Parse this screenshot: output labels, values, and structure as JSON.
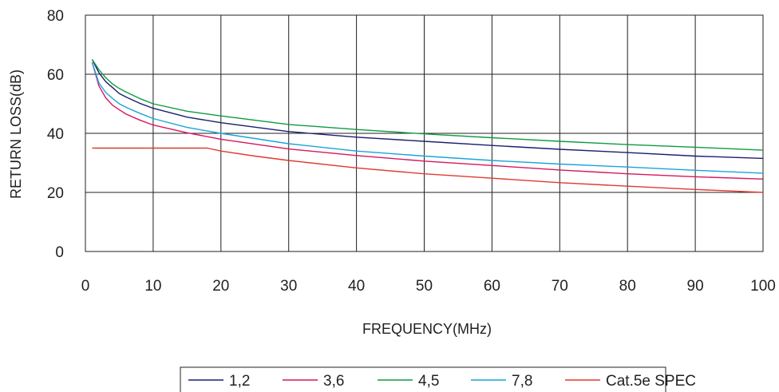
{
  "chart_data": {
    "type": "line",
    "xlabel": "FREQUENCY(MHz)",
    "ylabel": "RETURN LOSS(dB)",
    "xlim": [
      0,
      100
    ],
    "ylim": [
      0,
      80
    ],
    "xticks": [
      "0",
      "10",
      "20",
      "30",
      "40",
      "50",
      "60",
      "70",
      "80",
      "90",
      "100"
    ],
    "yticks": [
      "0",
      "20",
      "40",
      "60",
      "80"
    ],
    "grid": true,
    "legend_position": "bottom",
    "series": [
      {
        "name": "1,2",
        "color": "#1a1f6e",
        "x": [
          1,
          2,
          3,
          4,
          5,
          6,
          8,
          10,
          15,
          20,
          30,
          40,
          50,
          60,
          70,
          80,
          90,
          100
        ],
        "y": [
          65,
          60.5,
          57.5,
          55.5,
          53.5,
          52.3,
          50.2,
          48.5,
          45.5,
          43.6,
          40.6,
          38.7,
          37.3,
          35.9,
          34.6,
          33.5,
          32.3,
          31.5
        ]
      },
      {
        "name": "3,6",
        "color": "#d6175e",
        "x": [
          1,
          2,
          3,
          4,
          5,
          6,
          8,
          10,
          15,
          20,
          30,
          40,
          50,
          60,
          70,
          80,
          90,
          100
        ],
        "y": [
          64,
          56,
          52,
          49.5,
          48,
          46.5,
          44.5,
          42.8,
          40.2,
          38,
          34.7,
          32.5,
          30.6,
          29.1,
          27.6,
          26.3,
          25.3,
          24.5
        ]
      },
      {
        "name": "4,5",
        "color": "#119a43",
        "x": [
          1,
          2,
          3,
          4,
          5,
          6,
          8,
          10,
          15,
          20,
          30,
          40,
          50,
          60,
          70,
          80,
          90,
          100
        ],
        "y": [
          65,
          61.5,
          58.8,
          56.7,
          55.2,
          54,
          51.8,
          50,
          47.5,
          45.9,
          43,
          41.3,
          39.8,
          38.5,
          37.3,
          36.2,
          35.3,
          34.3
        ]
      },
      {
        "name": "7,8",
        "color": "#1ba3db",
        "x": [
          1,
          2,
          3,
          4,
          5,
          6,
          8,
          10,
          15,
          20,
          30,
          40,
          50,
          60,
          70,
          80,
          90,
          100
        ],
        "y": [
          64,
          57,
          53.8,
          51.8,
          50,
          48.8,
          46.8,
          45,
          42,
          40,
          36.5,
          34,
          32.3,
          30.8,
          29.6,
          28.6,
          27.5,
          26.5
        ]
      },
      {
        "name": "Cat.5e SPEC",
        "color": "#e03a2e",
        "x": [
          1,
          5,
          10,
          15,
          18,
          20,
          25,
          30,
          40,
          50,
          60,
          70,
          80,
          90,
          100
        ],
        "y": [
          35,
          35,
          35,
          35,
          35,
          34,
          32.3,
          30.8,
          28.3,
          26.3,
          24.8,
          23.3,
          22.1,
          21,
          20
        ]
      }
    ]
  }
}
